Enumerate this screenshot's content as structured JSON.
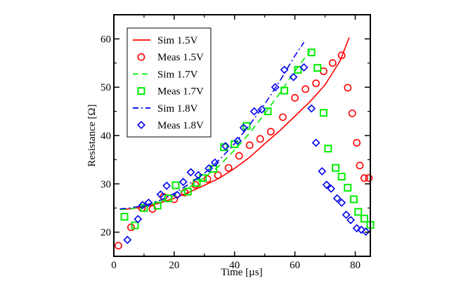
{
  "chart_data": {
    "type": "scatter",
    "title": "",
    "xlabel": "Time  [µs]",
    "ylabel": "Resistance  [Ω]",
    "xlim": [
      0,
      85
    ],
    "ylim": [
      15,
      65
    ],
    "xticks": [
      0,
      20,
      40,
      60,
      80
    ],
    "xticks_minor": [
      10,
      30,
      50,
      70
    ],
    "yticks": [
      20,
      30,
      40,
      50,
      60
    ],
    "yticks_minor": [
      25,
      35,
      45,
      55
    ],
    "grid": false,
    "legend_position": "top-left",
    "series": [
      {
        "name": "Sim 1.5V",
        "kind": "line",
        "style": "solid",
        "color": "#ff0000",
        "x": [
          2,
          5,
          10,
          15,
          20,
          25,
          30,
          35,
          40,
          45,
          50,
          55,
          60,
          65,
          70,
          75,
          78
        ],
        "y": [
          24.7,
          24.8,
          25.2,
          26.0,
          27.0,
          28.3,
          29.7,
          31.2,
          33.2,
          35.5,
          38.3,
          41.0,
          44.0,
          47.0,
          50.5,
          55.5,
          60.3
        ]
      },
      {
        "name": "Meas 1.5V",
        "kind": "marker",
        "marker": "circle",
        "color": "#ff0000",
        "x": [
          1.5,
          5.7,
          9.3,
          12.8,
          16.5,
          20.0,
          23.5,
          27.0,
          31.0,
          34.5,
          38.0,
          41.5,
          45.0,
          48.5,
          52.0,
          56.0,
          60.0,
          63.5,
          67.0,
          69.5,
          72.5,
          75.5,
          77.5,
          79.0,
          80.5,
          81.5,
          83.0,
          84.5
        ],
        "y": [
          17.2,
          21.0,
          25.0,
          24.8,
          27.3,
          26.8,
          28.2,
          29.8,
          31.0,
          31.8,
          33.3,
          35.8,
          38.0,
          39.3,
          40.8,
          43.8,
          47.8,
          49.6,
          50.8,
          53.3,
          55.0,
          56.6,
          49.9,
          44.6,
          38.5,
          33.8,
          31.2,
          31.2
        ]
      },
      {
        "name": "Sim 1.7V",
        "kind": "line",
        "style": "dashed",
        "color": "#00ee00",
        "x": [
          2,
          5,
          10,
          15,
          20,
          25,
          30,
          35,
          40,
          45,
          50,
          55,
          60,
          65
        ],
        "y": [
          24.7,
          24.8,
          25.3,
          26.2,
          27.6,
          29.3,
          31.3,
          33.8,
          37.0,
          40.5,
          44.5,
          48.8,
          53.3,
          57.5
        ]
      },
      {
        "name": "Meas 1.7V",
        "kind": "marker",
        "marker": "square",
        "color": "#00ee00",
        "x": [
          3.5,
          7.0,
          10.0,
          14.5,
          18.0,
          20.5,
          24.5,
          27.5,
          29.5,
          33.0,
          36.5,
          40.0,
          44.0,
          51.0,
          56.5,
          61.0,
          65.5,
          67.5,
          69.5,
          71.0,
          73.5,
          75.5,
          77.5,
          79.5,
          81.0,
          83.0,
          85.0
        ],
        "y": [
          23.2,
          21.4,
          25.0,
          25.5,
          27.0,
          29.7,
          28.4,
          30.2,
          31.2,
          33.1,
          37.6,
          38.2,
          42.0,
          45.0,
          49.3,
          53.6,
          57.2,
          54.0,
          44.7,
          37.3,
          33.3,
          31.5,
          29.2,
          26.8,
          24.2,
          22.8,
          21.5
        ]
      },
      {
        "name": "Sim 1.8V",
        "kind": "line",
        "style": "dashdot",
        "color": "#0000ee",
        "x": [
          2,
          5,
          10,
          15,
          20,
          25,
          30,
          35,
          40,
          45,
          50,
          55,
          60,
          63
        ],
        "y": [
          24.8,
          25.0,
          25.5,
          26.5,
          28.0,
          30.0,
          32.2,
          35.0,
          38.3,
          42.2,
          46.5,
          51.3,
          56.5,
          59.3
        ]
      },
      {
        "name": "Meas 1.8V",
        "kind": "marker",
        "marker": "diamond",
        "color": "#0000ee",
        "x": [
          4.5,
          8.0,
          9.5,
          11.5,
          15.5,
          17.5,
          21.0,
          23.0,
          25.5,
          28.0,
          31.5,
          33.5,
          37.0,
          41.0,
          43.0,
          46.5,
          49.0,
          53.5,
          56.5,
          59.5,
          63.0,
          65.5,
          67.0,
          69.0,
          70.5,
          72.0,
          74.0,
          75.5,
          77.0,
          78.5,
          80.5,
          82.0,
          83.5
        ],
        "y": [
          18.4,
          22.7,
          25.6,
          26.1,
          27.8,
          29.6,
          27.7,
          30.4,
          32.4,
          31.8,
          33.2,
          34.4,
          37.8,
          38.9,
          41.6,
          45.0,
          45.4,
          50.0,
          53.6,
          52.1,
          54.1,
          45.6,
          38.5,
          32.6,
          29.8,
          29.0,
          27.0,
          26.1,
          23.6,
          22.5,
          20.8,
          20.5,
          20.1
        ]
      }
    ]
  }
}
